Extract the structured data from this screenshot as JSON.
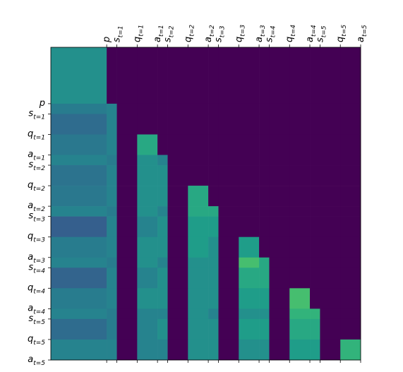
{
  "chart_data": {
    "type": "heatmap",
    "colormap": "viridis",
    "zlim": [
      0,
      1
    ],
    "xlim": [
      0,
      122
    ],
    "ylim": [
      0,
      122
    ],
    "bounds": [
      0,
      22,
      26,
      34,
      42,
      46,
      54,
      62,
      66,
      74,
      82,
      86,
      94,
      102,
      106,
      114,
      122
    ],
    "xticks": [
      {
        "value": 22,
        "label": "p"
      },
      {
        "value": 26,
        "label": "st=1"
      },
      {
        "value": 34,
        "label": "qt=1"
      },
      {
        "value": 42,
        "label": "at=1"
      },
      {
        "value": 46,
        "label": "st=2"
      },
      {
        "value": 54,
        "label": "qt=2"
      },
      {
        "value": 62,
        "label": "at=2"
      },
      {
        "value": 66,
        "label": "st=3"
      },
      {
        "value": 74,
        "label": "qt=3"
      },
      {
        "value": 82,
        "label": "at=3"
      },
      {
        "value": 86,
        "label": "st=4"
      },
      {
        "value": 94,
        "label": "qt=4"
      },
      {
        "value": 102,
        "label": "at=4"
      },
      {
        "value": 106,
        "label": "st=5"
      },
      {
        "value": 114,
        "label": "qt=5"
      },
      {
        "value": 122,
        "label": "at=5"
      }
    ],
    "yticks": [
      {
        "value": 22,
        "label": "p"
      },
      {
        "value": 26,
        "label": "st=1"
      },
      {
        "value": 34,
        "label": "qt=1"
      },
      {
        "value": 42,
        "label": "at=1"
      },
      {
        "value": 46,
        "label": "st=2"
      },
      {
        "value": 54,
        "label": "qt=2"
      },
      {
        "value": 62,
        "label": "at=2"
      },
      {
        "value": 66,
        "label": "st=3"
      },
      {
        "value": 74,
        "label": "qt=3"
      },
      {
        "value": 82,
        "label": "at=3"
      },
      {
        "value": 86,
        "label": "st=4"
      },
      {
        "value": 94,
        "label": "qt=4"
      },
      {
        "value": 102,
        "label": "at=4"
      },
      {
        "value": 106,
        "label": "st=5"
      },
      {
        "value": 114,
        "label": "qt=5"
      },
      {
        "value": 122,
        "label": "at=5"
      }
    ],
    "z": [
      [
        0.5,
        0,
        0,
        0,
        0,
        0,
        0,
        0,
        0,
        0,
        0,
        0,
        0,
        0,
        0,
        0
      ],
      [
        0.42,
        0.45,
        0,
        0,
        0,
        0,
        0,
        0,
        0,
        0,
        0,
        0,
        0,
        0,
        0,
        0
      ],
      [
        0.35,
        0.45,
        0,
        0,
        0,
        0,
        0,
        0,
        0,
        0,
        0,
        0,
        0,
        0,
        0,
        0
      ],
      [
        0.4,
        0.45,
        0,
        0.6,
        0,
        0,
        0,
        0,
        0,
        0,
        0,
        0,
        0,
        0,
        0,
        0
      ],
      [
        0.45,
        0.42,
        0,
        0.5,
        0.45,
        0,
        0,
        0,
        0,
        0,
        0,
        0,
        0,
        0,
        0,
        0
      ],
      [
        0.38,
        0.45,
        0,
        0.5,
        0.5,
        0,
        0,
        0,
        0,
        0,
        0,
        0,
        0,
        0,
        0,
        0
      ],
      [
        0.4,
        0.45,
        0,
        0.5,
        0.5,
        0,
        0.6,
        0,
        0,
        0,
        0,
        0,
        0,
        0,
        0,
        0
      ],
      [
        0.45,
        0.42,
        0,
        0.5,
        0.45,
        0,
        0.6,
        0.6,
        0,
        0,
        0,
        0,
        0,
        0,
        0,
        0
      ],
      [
        0.3,
        0.45,
        0,
        0.45,
        0.5,
        0,
        0.55,
        0.55,
        0,
        0,
        0,
        0,
        0,
        0,
        0,
        0
      ],
      [
        0.42,
        0.45,
        0,
        0.5,
        0.5,
        0,
        0.55,
        0.5,
        0,
        0.55,
        0,
        0,
        0,
        0,
        0,
        0
      ],
      [
        0.45,
        0.42,
        0,
        0.5,
        0.45,
        0,
        0.5,
        0.5,
        0,
        0.7,
        0.6,
        0,
        0,
        0,
        0,
        0
      ],
      [
        0.32,
        0.45,
        0,
        0.45,
        0.5,
        0,
        0.5,
        0.5,
        0,
        0.6,
        0.6,
        0,
        0,
        0,
        0,
        0
      ],
      [
        0.42,
        0.45,
        0,
        0.5,
        0.5,
        0,
        0.5,
        0.5,
        0,
        0.55,
        0.55,
        0,
        0.7,
        0,
        0,
        0
      ],
      [
        0.45,
        0.42,
        0,
        0.45,
        0.45,
        0,
        0.5,
        0.45,
        0,
        0.5,
        0.5,
        0,
        0.65,
        0.65,
        0,
        0
      ],
      [
        0.35,
        0.42,
        0,
        0.45,
        0.5,
        0,
        0.5,
        0.5,
        0,
        0.55,
        0.55,
        0,
        0.6,
        0.6,
        0,
        0
      ],
      [
        0.45,
        0.45,
        0,
        0.45,
        0.45,
        0,
        0.5,
        0.5,
        0,
        0.5,
        0.5,
        0,
        0.55,
        0.55,
        0,
        0.65
      ]
    ]
  }
}
